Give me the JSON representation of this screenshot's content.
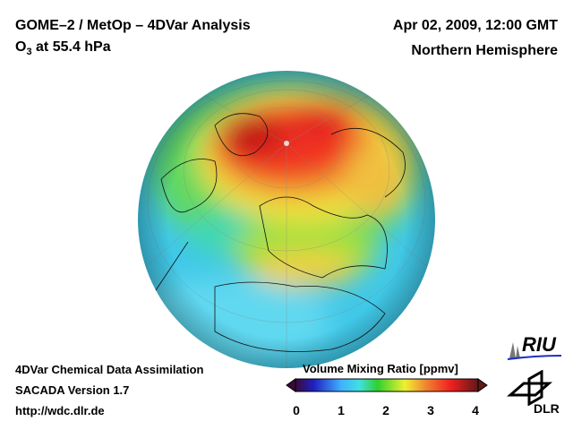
{
  "header": {
    "title": "GOME–2 / MetOp – 4DVar Analysis",
    "species_prefix": "O",
    "species_sub": "3",
    "species_suffix": " at 55.4 hPa",
    "datetime": "Apr 02, 2009, 12:00 GMT",
    "region": "Northern Hemisphere"
  },
  "footer": {
    "line1": "4DVar Chemical Data Assimilation",
    "line2": "SACADA Version 1.7",
    "line3": "http://wdc.dlr.de"
  },
  "colorbar": {
    "title": "Volume Mixing Ratio [ppmv]",
    "ticks": [
      "0",
      "1",
      "2",
      "3",
      "4"
    ],
    "range": [
      0,
      4
    ],
    "colors": [
      "#3a0a3a",
      "#2020c0",
      "#40b0ff",
      "#40e0e0",
      "#30d030",
      "#f0f030",
      "#f08030",
      "#f02020",
      "#601818"
    ]
  },
  "logos": {
    "riu": "RIU",
    "dlr": "DLR"
  }
}
